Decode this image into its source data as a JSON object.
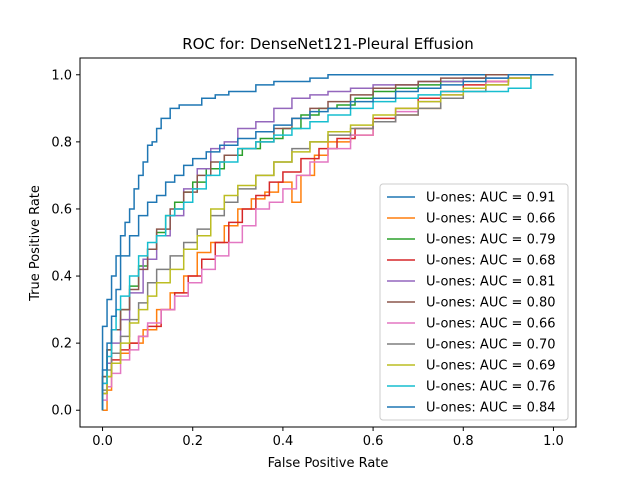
{
  "chart_data": {
    "type": "line",
    "title": "ROC for: DenseNet121-Pleural Effusion",
    "xlabel": "False Positive Rate",
    "ylabel": "True Positive Rate",
    "xlim": [
      -0.05,
      1.05
    ],
    "ylim": [
      -0.05,
      1.05
    ],
    "xticks": [
      0.0,
      0.2,
      0.4,
      0.6,
      0.8,
      1.0
    ],
    "xtick_labels": [
      "0.0",
      "0.2",
      "0.4",
      "0.6",
      "0.8",
      "1.0"
    ],
    "yticks": [
      0.0,
      0.2,
      0.4,
      0.6,
      0.8,
      1.0
    ],
    "ytick_labels": [
      "0.0",
      "0.2",
      "0.4",
      "0.6",
      "0.8",
      "1.0"
    ],
    "grid": false,
    "legend_position": "lower right",
    "series": [
      {
        "name": "U-ones: AUC = 0.91",
        "color": "#1f77b4",
        "x": [
          0.0,
          0.0,
          0.01,
          0.02,
          0.03,
          0.04,
          0.05,
          0.06,
          0.07,
          0.08,
          0.09,
          0.1,
          0.11,
          0.12,
          0.13,
          0.15,
          0.17,
          0.19,
          0.22,
          0.25,
          0.28,
          0.3,
          0.34,
          0.38,
          0.42,
          0.46,
          0.5,
          0.54,
          0.6,
          0.7,
          0.8,
          0.9,
          1.0
        ],
        "y": [
          0.0,
          0.15,
          0.25,
          0.33,
          0.4,
          0.46,
          0.52,
          0.56,
          0.6,
          0.66,
          0.7,
          0.74,
          0.79,
          0.8,
          0.84,
          0.87,
          0.9,
          0.91,
          0.91,
          0.93,
          0.94,
          0.95,
          0.95,
          0.97,
          0.98,
          0.98,
          0.99,
          1.0,
          1.0,
          1.0,
          1.0,
          1.0,
          1.0
        ]
      },
      {
        "name": "U-ones: AUC = 0.66",
        "color": "#ff7f0e",
        "x": [
          0.0,
          0.01,
          0.02,
          0.04,
          0.06,
          0.09,
          0.12,
          0.15,
          0.18,
          0.21,
          0.24,
          0.27,
          0.3,
          0.33,
          0.36,
          0.39,
          0.42,
          0.44,
          0.47,
          0.5,
          0.55,
          0.6,
          0.65,
          0.7,
          0.75,
          0.8,
          0.85,
          0.9,
          0.95,
          1.0
        ],
        "y": [
          0.0,
          0.0,
          0.06,
          0.14,
          0.17,
          0.2,
          0.24,
          0.3,
          0.35,
          0.4,
          0.47,
          0.5,
          0.55,
          0.6,
          0.63,
          0.65,
          0.68,
          0.62,
          0.7,
          0.76,
          0.8,
          0.82,
          0.86,
          0.88,
          0.9,
          0.93,
          0.96,
          0.98,
          0.99,
          1.0
        ]
      },
      {
        "name": "U-ones: AUC = 0.79",
        "color": "#2ca02c",
        "x": [
          0.0,
          0.01,
          0.02,
          0.04,
          0.06,
          0.08,
          0.1,
          0.12,
          0.14,
          0.16,
          0.18,
          0.2,
          0.23,
          0.27,
          0.31,
          0.35,
          0.4,
          0.44,
          0.48,
          0.52,
          0.56,
          0.6,
          0.65,
          0.7,
          0.75,
          0.8,
          0.85,
          0.9,
          0.95,
          1.0
        ],
        "y": [
          0.0,
          0.1,
          0.18,
          0.24,
          0.3,
          0.37,
          0.43,
          0.48,
          0.53,
          0.58,
          0.62,
          0.65,
          0.68,
          0.72,
          0.76,
          0.78,
          0.81,
          0.84,
          0.88,
          0.9,
          0.91,
          0.93,
          0.95,
          0.96,
          0.97,
          0.98,
          0.99,
          1.0,
          1.0,
          1.0
        ]
      },
      {
        "name": "U-ones: AUC = 0.68",
        "color": "#d62728",
        "x": [
          0.0,
          0.01,
          0.02,
          0.04,
          0.06,
          0.08,
          0.1,
          0.13,
          0.16,
          0.19,
          0.22,
          0.25,
          0.28,
          0.31,
          0.34,
          0.37,
          0.4,
          0.44,
          0.48,
          0.52,
          0.56,
          0.6,
          0.65,
          0.7,
          0.75,
          0.8,
          0.85,
          0.9,
          0.95,
          1.0
        ],
        "y": [
          0.0,
          0.05,
          0.1,
          0.15,
          0.18,
          0.2,
          0.22,
          0.25,
          0.3,
          0.35,
          0.4,
          0.45,
          0.5,
          0.56,
          0.6,
          0.64,
          0.68,
          0.71,
          0.75,
          0.78,
          0.81,
          0.84,
          0.87,
          0.9,
          0.93,
          0.95,
          0.97,
          0.98,
          0.99,
          1.0
        ]
      },
      {
        "name": "U-ones: AUC = 0.81",
        "color": "#9467bd",
        "x": [
          0.0,
          0.01,
          0.02,
          0.04,
          0.06,
          0.09,
          0.12,
          0.15,
          0.18,
          0.21,
          0.24,
          0.27,
          0.3,
          0.34,
          0.38,
          0.42,
          0.46,
          0.5,
          0.55,
          0.6,
          0.65,
          0.7,
          0.75,
          0.8,
          0.85,
          0.9,
          0.95,
          1.0
        ],
        "y": [
          0.0,
          0.08,
          0.14,
          0.2,
          0.27,
          0.35,
          0.45,
          0.52,
          0.58,
          0.66,
          0.72,
          0.78,
          0.8,
          0.84,
          0.86,
          0.9,
          0.93,
          0.94,
          0.95,
          0.96,
          0.97,
          0.97,
          0.98,
          0.98,
          0.99,
          0.99,
          1.0,
          1.0
        ]
      },
      {
        "name": "U-ones: AUC = 0.80",
        "color": "#8c564b",
        "x": [
          0.0,
          0.01,
          0.02,
          0.04,
          0.06,
          0.08,
          0.1,
          0.12,
          0.15,
          0.18,
          0.21,
          0.24,
          0.27,
          0.3,
          0.34,
          0.38,
          0.42,
          0.46,
          0.5,
          0.55,
          0.6,
          0.65,
          0.7,
          0.75,
          0.8,
          0.85,
          0.9,
          0.95,
          1.0
        ],
        "y": [
          0.0,
          0.1,
          0.18,
          0.24,
          0.3,
          0.36,
          0.42,
          0.48,
          0.54,
          0.6,
          0.65,
          0.7,
          0.74,
          0.76,
          0.78,
          0.8,
          0.84,
          0.87,
          0.9,
          0.92,
          0.94,
          0.96,
          0.97,
          0.98,
          0.99,
          0.99,
          1.0,
          1.0,
          1.0
        ]
      },
      {
        "name": "U-ones: AUC = 0.66",
        "color": "#e377c2",
        "x": [
          0.0,
          0.01,
          0.02,
          0.04,
          0.06,
          0.08,
          0.1,
          0.13,
          0.16,
          0.19,
          0.22,
          0.25,
          0.28,
          0.31,
          0.34,
          0.37,
          0.4,
          0.43,
          0.46,
          0.5,
          0.55,
          0.6,
          0.65,
          0.7,
          0.75,
          0.8,
          0.85,
          0.9,
          0.95,
          1.0
        ],
        "y": [
          0.0,
          0.03,
          0.07,
          0.11,
          0.15,
          0.18,
          0.22,
          0.26,
          0.3,
          0.34,
          0.38,
          0.42,
          0.46,
          0.5,
          0.55,
          0.6,
          0.62,
          0.66,
          0.7,
          0.74,
          0.78,
          0.82,
          0.86,
          0.89,
          0.92,
          0.94,
          0.96,
          0.98,
          0.99,
          1.0
        ]
      },
      {
        "name": "U-ones: AUC = 0.70",
        "color": "#7f7f7f",
        "x": [
          0.0,
          0.01,
          0.02,
          0.04,
          0.06,
          0.08,
          0.1,
          0.12,
          0.15,
          0.18,
          0.21,
          0.24,
          0.27,
          0.3,
          0.34,
          0.38,
          0.42,
          0.46,
          0.5,
          0.55,
          0.6,
          0.65,
          0.7,
          0.75,
          0.8,
          0.85,
          0.9,
          0.95,
          1.0
        ],
        "y": [
          0.0,
          0.06,
          0.12,
          0.17,
          0.22,
          0.27,
          0.32,
          0.38,
          0.42,
          0.46,
          0.5,
          0.54,
          0.58,
          0.62,
          0.66,
          0.7,
          0.74,
          0.78,
          0.8,
          0.82,
          0.84,
          0.86,
          0.88,
          0.9,
          0.93,
          0.95,
          0.97,
          0.99,
          1.0
        ]
      },
      {
        "name": "U-ones: AUC = 0.69",
        "color": "#bcbd22",
        "x": [
          0.0,
          0.01,
          0.02,
          0.04,
          0.06,
          0.08,
          0.1,
          0.12,
          0.15,
          0.18,
          0.21,
          0.24,
          0.27,
          0.3,
          0.34,
          0.38,
          0.42,
          0.46,
          0.5,
          0.55,
          0.6,
          0.65,
          0.7,
          0.75,
          0.8,
          0.85,
          0.9,
          0.95,
          1.0
        ],
        "y": [
          0.0,
          0.05,
          0.1,
          0.14,
          0.2,
          0.26,
          0.3,
          0.34,
          0.38,
          0.42,
          0.48,
          0.52,
          0.6,
          0.64,
          0.67,
          0.7,
          0.74,
          0.77,
          0.8,
          0.83,
          0.85,
          0.88,
          0.9,
          0.92,
          0.94,
          0.96,
          0.97,
          0.99,
          1.0
        ]
      },
      {
        "name": "U-ones: AUC = 0.76",
        "color": "#17becf",
        "x": [
          0.0,
          0.01,
          0.02,
          0.03,
          0.04,
          0.06,
          0.08,
          0.1,
          0.12,
          0.14,
          0.16,
          0.18,
          0.2,
          0.23,
          0.26,
          0.3,
          0.34,
          0.38,
          0.42,
          0.46,
          0.5,
          0.55,
          0.6,
          0.65,
          0.7,
          0.75,
          0.8,
          0.85,
          0.9,
          0.95,
          0.96,
          1.0
        ],
        "y": [
          0.0,
          0.08,
          0.16,
          0.24,
          0.3,
          0.34,
          0.4,
          0.46,
          0.5,
          0.52,
          0.58,
          0.6,
          0.62,
          0.66,
          0.7,
          0.74,
          0.78,
          0.8,
          0.82,
          0.84,
          0.86,
          0.88,
          0.9,
          0.92,
          0.93,
          0.94,
          0.95,
          0.95,
          0.95,
          0.96,
          1.0,
          1.0
        ]
      },
      {
        "name": "U-ones: AUC = 0.84",
        "color": "#1f77b4",
        "x": [
          0.0,
          0.01,
          0.02,
          0.03,
          0.04,
          0.06,
          0.08,
          0.1,
          0.12,
          0.14,
          0.16,
          0.18,
          0.2,
          0.23,
          0.26,
          0.3,
          0.34,
          0.38,
          0.42,
          0.46,
          0.5,
          0.55,
          0.6,
          0.65,
          0.7,
          0.75,
          0.8,
          0.85,
          0.9,
          0.95,
          1.0
        ],
        "y": [
          0.0,
          0.12,
          0.2,
          0.28,
          0.36,
          0.46,
          0.52,
          0.58,
          0.62,
          0.64,
          0.68,
          0.7,
          0.73,
          0.75,
          0.77,
          0.79,
          0.81,
          0.83,
          0.85,
          0.87,
          0.89,
          0.9,
          0.92,
          0.93,
          0.95,
          0.96,
          0.97,
          0.98,
          0.99,
          1.0,
          1.0
        ]
      }
    ]
  }
}
